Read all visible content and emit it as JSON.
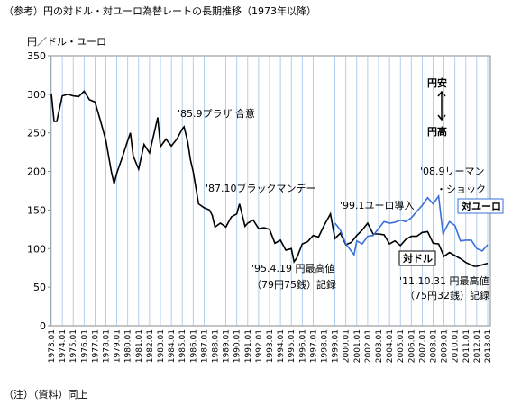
{
  "chart_data": {
    "type": "line",
    "title": "（参考）円の対ドル・対ユーロ為替レートの長期推移（1973年以降）",
    "y_label": "円／ドル・ユーロ",
    "note": "（注）（資料）同上",
    "ylim": [
      0,
      350
    ],
    "yticks": [
      0,
      50,
      100,
      150,
      200,
      250,
      300,
      350
    ],
    "xticks": [
      "1973.01",
      "1974.01",
      "1975.01",
      "1976.01",
      "1977.01",
      "1978.01",
      "1979.01",
      "1980.01",
      "1981.01",
      "1982.01",
      "1983.01",
      "1984.01",
      "1985.01",
      "1986.01",
      "1987.01",
      "1988.01",
      "1989.01",
      "1990.01",
      "1991.01",
      "1992.01",
      "1993.01",
      "1994.01",
      "1995.01",
      "1996.01",
      "1997.01",
      "1998.01",
      "1999.01",
      "2000.01",
      "2001.01",
      "2002.01",
      "2003.01",
      "2004.01",
      "2005.01",
      "2006.01",
      "2007.01",
      "2008.01",
      "2009.01",
      "2010.01",
      "2011.01",
      "2012.01",
      "2013.01"
    ],
    "grid": "x",
    "series": [
      {
        "name": "対ドル",
        "color": "#000000",
        "x": [
          "1973.01",
          "1973.04",
          "1973.07",
          "1974.01",
          "1974.07",
          "1975.01",
          "1975.07",
          "1976.01",
          "1976.07",
          "1977.01",
          "1977.07",
          "1978.01",
          "1978.07",
          "1978.10",
          "1979.01",
          "1979.07",
          "1980.01",
          "1980.04",
          "1980.07",
          "1981.01",
          "1981.07",
          "1982.01",
          "1982.10",
          "1983.01",
          "1983.07",
          "1984.01",
          "1984.07",
          "1985.01",
          "1985.03",
          "1985.07",
          "1985.10",
          "1986.01",
          "1986.07",
          "1987.01",
          "1987.07",
          "1987.10",
          "1988.01",
          "1988.07",
          "1989.01",
          "1989.07",
          "1990.01",
          "1990.04",
          "1990.10",
          "1991.01",
          "1991.07",
          "1992.01",
          "1992.07",
          "1993.01",
          "1993.07",
          "1994.01",
          "1994.07",
          "1995.01",
          "1995.04",
          "1995.07",
          "1996.01",
          "1996.07",
          "1997.01",
          "1997.07",
          "1998.01",
          "1998.08",
          "1999.01",
          "1999.07",
          "2000.01",
          "2000.07",
          "2001.01",
          "2001.07",
          "2002.01",
          "2002.07",
          "2003.01",
          "2003.07",
          "2004.01",
          "2004.07",
          "2005.01",
          "2005.07",
          "2006.01",
          "2006.07",
          "2007.01",
          "2007.07",
          "2008.01",
          "2008.07",
          "2009.01",
          "2009.07",
          "2010.01",
          "2010.07",
          "2011.01",
          "2011.10",
          "2012.01",
          "2012.07",
          "2013.01"
        ],
        "values": [
          301,
          265,
          265,
          298,
          300,
          298,
          297,
          304,
          293,
          290,
          266,
          240,
          200,
          184,
          198,
          218,
          240,
          250,
          220,
          203,
          235,
          224,
          270,
          232,
          242,
          233,
          242,
          255,
          258,
          238,
          215,
          200,
          158,
          153,
          150,
          143,
          128,
          133,
          128,
          141,
          145,
          158,
          129,
          133,
          137,
          126,
          127,
          125,
          107,
          111,
          98,
          100,
          83,
          88,
          106,
          109,
          117,
          115,
          130,
          145,
          113,
          120,
          105,
          108,
          117,
          124,
          133,
          119,
          119,
          118,
          106,
          110,
          104,
          112,
          116,
          116,
          121,
          122,
          107,
          106,
          90,
          95,
          91,
          87,
          82,
          77,
          77,
          79,
          81
        ]
      },
      {
        "name": "対ユーロ",
        "color": "#3a6fd8",
        "x": [
          "1999.01",
          "1999.07",
          "2000.01",
          "2000.10",
          "2001.01",
          "2001.07",
          "2002.01",
          "2002.07",
          "2003.01",
          "2003.07",
          "2004.01",
          "2004.07",
          "2005.01",
          "2005.07",
          "2006.01",
          "2006.07",
          "2007.01",
          "2007.07",
          "2008.01",
          "2008.07",
          "2008.12",
          "2009.01",
          "2009.07",
          "2010.01",
          "2010.07",
          "2011.01",
          "2011.07",
          "2011.12",
          "2012.01",
          "2012.07",
          "2013.01"
        ],
        "values": [
          133,
          124,
          106,
          92,
          110,
          106,
          116,
          117,
          126,
          135,
          133,
          134,
          137,
          135,
          140,
          148,
          156,
          166,
          158,
          168,
          118,
          122,
          135,
          130,
          110,
          111,
          111,
          102,
          100,
          97,
          105
        ]
      }
    ],
    "annotations": [
      "'85.9プラザ 合意",
      "'87.10ブラックマンデー",
      "'99.1ユーロ導入",
      "'08.9リーマン",
      "・ショック",
      "'95.4.19 円最高値",
      "（79円75銭）記録",
      "'11.10.31 円最高値",
      "（75円32銭）記録",
      "円安",
      "円高"
    ]
  }
}
